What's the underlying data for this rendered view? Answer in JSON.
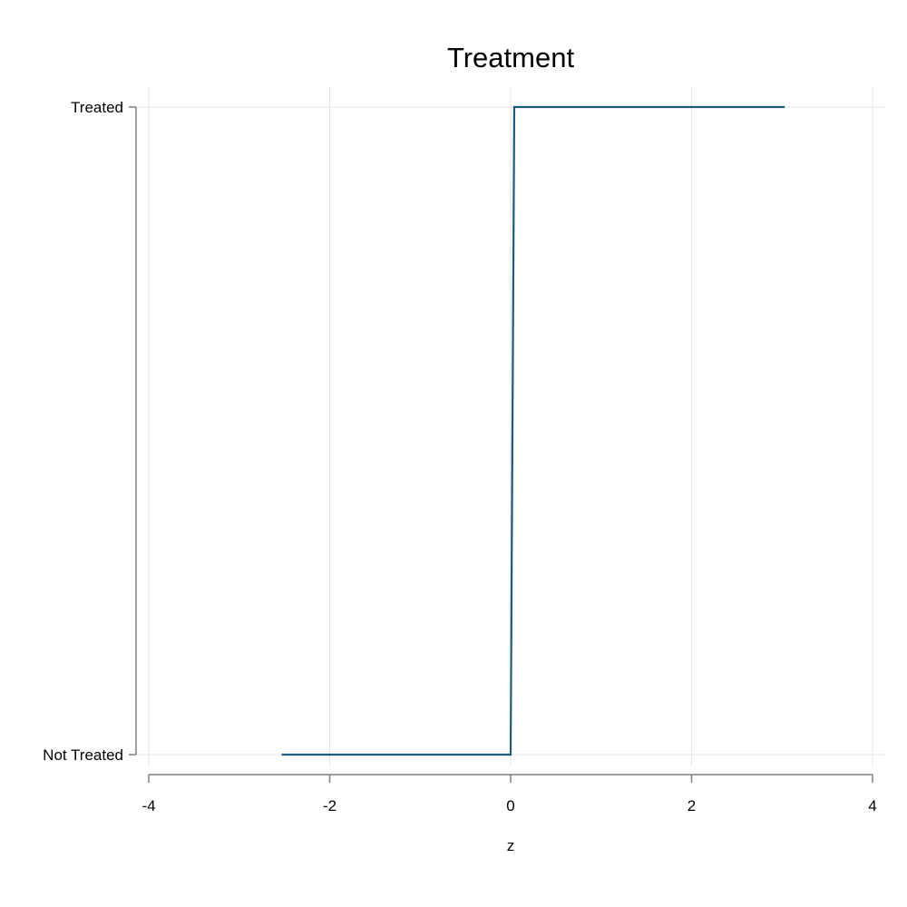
{
  "chart_data": {
    "type": "line",
    "title": "Treatment",
    "xlabel": "z",
    "ylabel": "",
    "xlim": [
      -4,
      4
    ],
    "x_ticks": [
      "-4",
      "-2",
      "0",
      "2",
      "4"
    ],
    "y_categories": [
      "Not Treated",
      "Treated"
    ],
    "grid": true,
    "series": [
      {
        "color": "#1f5a7a",
        "points": [
          {
            "x": -2.53,
            "y": "Not Treated"
          },
          {
            "x": 0.0,
            "y": "Not Treated"
          },
          {
            "x": 0.04,
            "y": "Treated"
          },
          {
            "x": 3.03,
            "y": "Treated"
          }
        ]
      }
    ]
  }
}
